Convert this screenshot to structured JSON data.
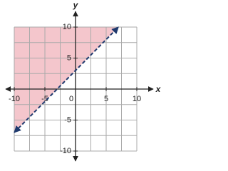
{
  "chart_data": {
    "type": "inequality",
    "x_label": "x",
    "y_label": "y",
    "xlim": [
      -10,
      10
    ],
    "ylim": [
      -10,
      10
    ],
    "xticks": [
      -10,
      -5,
      0,
      5,
      10
    ],
    "yticks": [
      -10,
      -5,
      5,
      10
    ],
    "xgrid": [
      -10,
      -7.5,
      -5,
      -2.5,
      0,
      2.5,
      5,
      7.5,
      10
    ],
    "ygrid": [
      -10,
      -7.5,
      -5,
      -2.5,
      0,
      2.5,
      5,
      7.5,
      10
    ],
    "boundary": {
      "x": [
        -10,
        7
      ],
      "values": [
        -7,
        10
      ],
      "color": "#1f3a6e",
      "dashed": true
    },
    "shade": {
      "side": "above",
      "color": "#f4c6cc"
    }
  }
}
